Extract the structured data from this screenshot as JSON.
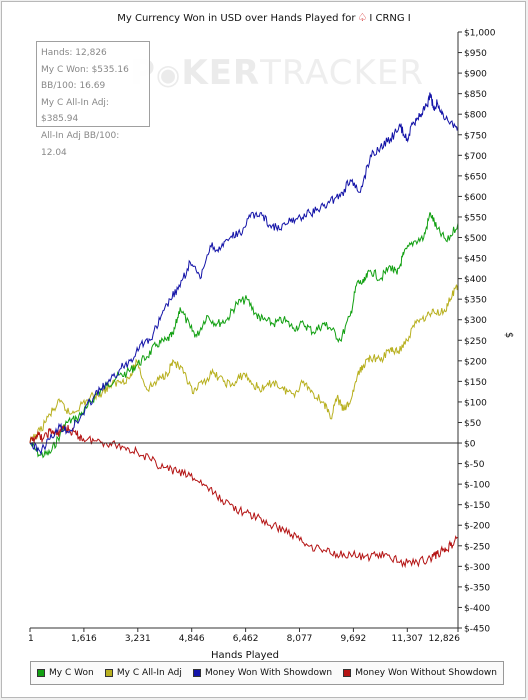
{
  "chart_data": {
    "type": "line",
    "title": "My Currency Won in USD over Hands Played for",
    "title_suffix": "I CRNG I",
    "title_icon": "spade-suit-icon",
    "xlabel": "Hands Played",
    "ylabel": "$",
    "xlim": [
      1,
      12826
    ],
    "ylim": [
      -450,
      1000
    ],
    "x_ticks": [
      1,
      1616,
      3231,
      4846,
      6462,
      8077,
      9692,
      11307,
      12826
    ],
    "x_tick_labels": [
      "1",
      "1,616",
      "3,231",
      "4,846",
      "6,462",
      "8,077",
      "9,692",
      "11,307",
      "12,826"
    ],
    "y_ticks": [
      1000,
      950,
      900,
      850,
      800,
      750,
      700,
      650,
      600,
      550,
      500,
      450,
      400,
      350,
      300,
      250,
      200,
      150,
      100,
      50,
      0,
      -50,
      -100,
      -150,
      -200,
      -250,
      -300,
      -350,
      -400,
      -450
    ],
    "y_tick_labels": [
      "$1,000",
      "$950",
      "$900",
      "$850",
      "$800",
      "$750",
      "$700",
      "$650",
      "$600",
      "$550",
      "$500",
      "$450",
      "$400",
      "$350",
      "$300",
      "$250",
      "$200",
      "$150",
      "$100",
      "$50",
      "$0",
      "$-50",
      "$-100",
      "$-150",
      "$-200",
      "$-250",
      "$-300",
      "$-350",
      "$-400",
      "$-450"
    ],
    "grid": false,
    "legend_position": "bottom",
    "series": [
      {
        "name": "My C Won",
        "color": "#12a012",
        "x": [
          1,
          300,
          600,
          900,
          1100,
          1400,
          1700,
          2000,
          2300,
          2600,
          2900,
          3200,
          3500,
          3800,
          4100,
          4300,
          4500,
          4800,
          5000,
          5300,
          5600,
          5900,
          6200,
          6500,
          6800,
          7000,
          7300,
          7600,
          7900,
          8200,
          8500,
          8800,
          9000,
          9300,
          9600,
          9800,
          10000,
          10200,
          10500,
          10800,
          11000,
          11200,
          11500,
          11800,
          12000,
          12200,
          12500,
          12826
        ],
        "y": [
          0,
          -30,
          -25,
          20,
          50,
          60,
          85,
          120,
          140,
          160,
          170,
          190,
          210,
          240,
          250,
          265,
          330,
          280,
          260,
          310,
          290,
          300,
          340,
          350,
          310,
          300,
          290,
          300,
          280,
          290,
          270,
          290,
          280,
          250,
          310,
          390,
          390,
          420,
          400,
          430,
          410,
          460,
          490,
          500,
          560,
          520,
          490,
          535
        ]
      },
      {
        "name": "My C All-In Adj",
        "color": "#b8b020",
        "x": [
          1,
          300,
          600,
          900,
          1200,
          1500,
          1800,
          2100,
          2400,
          2700,
          3000,
          3200,
          3500,
          3800,
          4100,
          4300,
          4600,
          4900,
          5200,
          5500,
          5800,
          6100,
          6400,
          6700,
          7000,
          7300,
          7600,
          7900,
          8200,
          8500,
          8800,
          9000,
          9200,
          9400,
          9600,
          9800,
          10000,
          10200,
          10500,
          10800,
          11000,
          11300,
          11600,
          11900,
          12100,
          12400,
          12600,
          12826
        ],
        "y": [
          0,
          30,
          70,
          100,
          70,
          90,
          110,
          120,
          140,
          150,
          160,
          200,
          130,
          150,
          170,
          200,
          170,
          120,
          150,
          170,
          150,
          140,
          170,
          140,
          130,
          150,
          130,
          120,
          150,
          120,
          100,
          60,
          110,
          80,
          100,
          160,
          190,
          210,
          200,
          230,
          220,
          250,
          300,
          310,
          320,
          320,
          350,
          386
        ]
      },
      {
        "name": "Money Won With Showdown",
        "color": "#1414a8",
        "x": [
          1,
          300,
          600,
          900,
          1200,
          1500,
          1800,
          2100,
          2400,
          2700,
          3000,
          3300,
          3600,
          3900,
          4200,
          4500,
          4800,
          5100,
          5400,
          5700,
          6000,
          6300,
          6600,
          6900,
          7200,
          7500,
          7800,
          8100,
          8400,
          8700,
          9000,
          9300,
          9600,
          9900,
          10200,
          10500,
          10800,
          11100,
          11300,
          11500,
          11700,
          11900,
          12000,
          12100,
          12200,
          12400,
          12600,
          12826
        ],
        "y": [
          0,
          -20,
          10,
          40,
          30,
          60,
          100,
          130,
          150,
          180,
          200,
          240,
          250,
          300,
          350,
          380,
          440,
          400,
          480,
          470,
          500,
          510,
          550,
          560,
          530,
          520,
          540,
          550,
          560,
          570,
          590,
          600,
          640,
          610,
          700,
          720,
          740,
          770,
          740,
          780,
          800,
          820,
          850,
          810,
          830,
          790,
          780,
          770
        ]
      },
      {
        "name": "Money Won Without Showdown",
        "color": "#b41414",
        "x": [
          1,
          200,
          400,
          600,
          800,
          1000,
          1200,
          1400,
          1600,
          2000,
          2400,
          2800,
          3200,
          3600,
          4000,
          4400,
          4800,
          5200,
          5600,
          6000,
          6400,
          6800,
          7200,
          7600,
          8000,
          8400,
          8800,
          9200,
          9600,
          10000,
          10400,
          10800,
          11200,
          11600,
          12000,
          12200,
          12400,
          12600,
          12826
        ],
        "y": [
          0,
          20,
          10,
          30,
          20,
          40,
          30,
          20,
          10,
          5,
          0,
          -10,
          -20,
          -40,
          -60,
          -70,
          -80,
          -100,
          -130,
          -150,
          -170,
          -180,
          -200,
          -210,
          -230,
          -250,
          -260,
          -270,
          -270,
          -280,
          -270,
          -280,
          -290,
          -290,
          -280,
          -270,
          -260,
          -250,
          -230
        ]
      }
    ]
  },
  "stats": {
    "hands": "Hands: 12,826",
    "won": "My C Won: $535.16",
    "bb100": "BB/100: 16.69",
    "allin_won": "My C All-In Adj: $385.94",
    "allin_bb100": "All-In Adj BB/100: 12.04"
  },
  "watermark": {
    "p": "P",
    "ker": "KER",
    "tracker": "TRACKER"
  },
  "colors": {
    "zero_line": "#333333",
    "axis": "#333333"
  }
}
